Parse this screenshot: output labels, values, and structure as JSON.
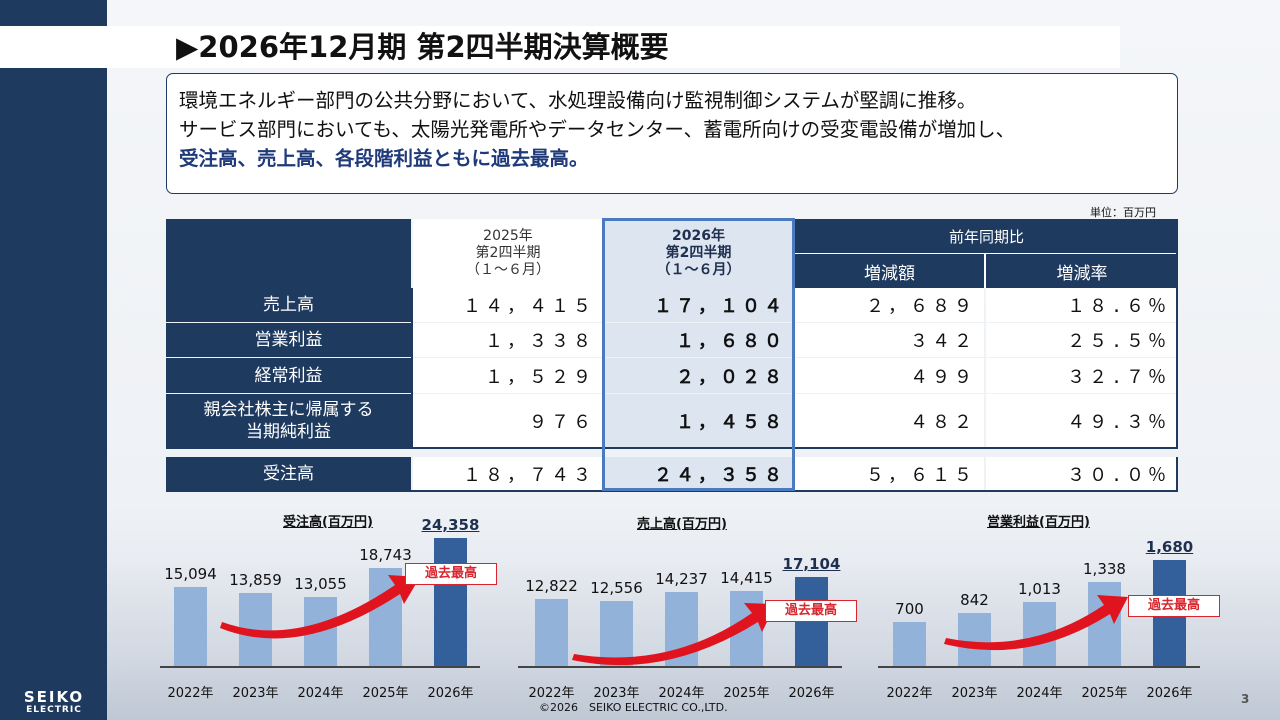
{
  "title": "▶2026年12月期 第2四半期決算概要",
  "summary": {
    "line1": "環境エネルギー部門の公共分野において、水処理設備向け監視制御システムが堅調に推移。",
    "line2": "サービス部門においても、太陽光発電所やデータセンター、蓄電所向けの受変電設備が増加し、",
    "line3": "受注高、売上高、各段階利益ともに過去最高。"
  },
  "unit": "単位：百万円",
  "table": {
    "header": {
      "prev_year": "2025年",
      "prev_period": "第2四半期",
      "prev_range": "（１～６月）",
      "cur_year": "2026年",
      "cur_period": "第2四半期",
      "cur_range": "（１～６月）",
      "yoy": "前年同期比",
      "diff": "増減額",
      "rate": "増減率"
    },
    "rows": [
      {
        "label": "売上高",
        "prev": "１４，４１５",
        "cur": "１７，１０４",
        "diff": "２，６８９",
        "rate": "１８.６％"
      },
      {
        "label": "営業利益",
        "prev": "１，３３８",
        "cur": "１，６８０",
        "diff": "３４２",
        "rate": "２５.５％"
      },
      {
        "label": "経常利益",
        "prev": "１，５２９",
        "cur": "２，０２８",
        "diff": "４９９",
        "rate": "３２.７％"
      },
      {
        "label1": "親会社株主に帰属する",
        "label2": "当期純利益",
        "prev": "９７６",
        "cur": "１，４５８",
        "diff": "４８２",
        "rate": "４９.３％"
      }
    ],
    "orders": {
      "label": "受注高",
      "prev": "１８，７４３",
      "cur": "２４，３５８",
      "diff": "５，６１５",
      "rate": "３０.０％"
    }
  },
  "charts": {
    "orders_title": "受注高(百万円)",
    "sales_title": "売上高(百万円)",
    "op_title": "営業利益(百万円)",
    "record_label": "過去最高"
  },
  "chart_data": [
    {
      "type": "bar",
      "title": "受注高(百万円)",
      "categories": [
        "2022年",
        "2023年",
        "2024年",
        "2025年",
        "2026年"
      ],
      "values": [
        15094,
        13859,
        13055,
        18743,
        24358
      ],
      "labels": [
        "15,094",
        "13,859",
        "13,055",
        "18,743",
        "24,358"
      ]
    },
    {
      "type": "bar",
      "title": "売上高(百万円)",
      "categories": [
        "2022年",
        "2023年",
        "2024年",
        "2025年",
        "2026年"
      ],
      "values": [
        12822,
        12556,
        14237,
        14415,
        17104
      ],
      "labels": [
        "12,822",
        "12,556",
        "14,237",
        "14,415",
        "17,104"
      ]
    },
    {
      "type": "bar",
      "title": "営業利益(百万円)",
      "categories": [
        "2022年",
        "2023年",
        "2024年",
        "2025年",
        "2026年"
      ],
      "values": [
        700,
        842,
        1013,
        1338,
        1680
      ],
      "labels": [
        "700",
        "842",
        "1,013",
        "1,338",
        "1,680"
      ]
    }
  ],
  "footer": "©2026　SEIKO ELECTRIC CO.,LTD.",
  "page_number": "3",
  "logo": {
    "line1": "SEIKO",
    "line2": "ELECTRIC"
  },
  "colors": {
    "navy": "#1f3a5f",
    "bar_light": "#92b2da",
    "bar_dark": "#33609a",
    "record_red": "#d9262e",
    "arrow_red": "#e0141e"
  }
}
